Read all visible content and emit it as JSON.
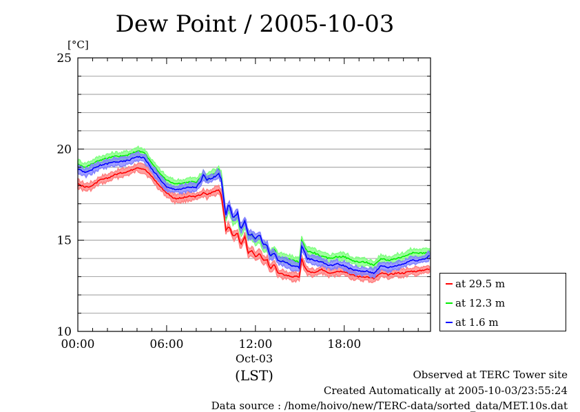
{
  "chart_data": {
    "type": "line",
    "title": "Dew Point / 2005-10-03",
    "ylabel": "[°C]",
    "xlabel": "(LST)",
    "date_label": "Oct-03",
    "ylim": [
      10,
      25
    ],
    "xlim": [
      0,
      23.83
    ],
    "yticks": [
      "10",
      "15",
      "20",
      "25"
    ],
    "xticks": [
      {
        "hour": 0,
        "label": "00:00"
      },
      {
        "hour": 6,
        "label": "06:00"
      },
      {
        "hour": 12,
        "label": "12:00"
      },
      {
        "hour": 18,
        "label": "18:00"
      }
    ],
    "grid": true,
    "legend_position": "right-bottom",
    "x_hours": [
      0,
      0.5,
      1,
      1.5,
      2,
      2.5,
      3,
      3.5,
      4,
      4.5,
      5,
      5.5,
      6,
      6.5,
      7,
      7.5,
      8,
      8.3,
      8.5,
      8.7,
      9,
      9.3,
      9.5,
      9.7,
      9.9,
      10.0,
      10.2,
      10.5,
      10.8,
      11,
      11.3,
      11.5,
      11.8,
      12,
      12.3,
      12.5,
      12.8,
      13,
      13.3,
      13.5,
      14,
      14.5,
      15,
      15.1,
      15.3,
      15.5,
      16,
      16.5,
      17,
      17.5,
      18,
      18.5,
      19,
      19.5,
      20,
      20.5,
      21,
      21.5,
      22,
      22.5,
      23,
      23.5,
      23.8
    ],
    "series": [
      {
        "name": "at 29.5 m",
        "color": "#ff0000",
        "values": [
          18.1,
          17.9,
          18.0,
          18.3,
          18.4,
          18.6,
          18.7,
          18.8,
          19.0,
          18.9,
          18.5,
          18.0,
          17.6,
          17.3,
          17.3,
          17.4,
          17.4,
          17.5,
          17.6,
          17.5,
          17.6,
          17.7,
          17.8,
          17.5,
          16.3,
          15.5,
          15.8,
          15.2,
          15.4,
          14.7,
          15.2,
          14.3,
          14.4,
          14.1,
          14.3,
          13.9,
          13.9,
          13.4,
          13.7,
          13.2,
          13.1,
          13.0,
          13.0,
          14.0,
          13.6,
          13.3,
          13.2,
          13.4,
          13.2,
          13.3,
          13.3,
          13.1,
          13.0,
          13.0,
          12.9,
          13.2,
          13.1,
          13.2,
          13.2,
          13.3,
          13.3,
          13.4,
          13.4
        ]
      },
      {
        "name": "at 12.3 m",
        "color": "#00ee00",
        "values": [
          19.2,
          19.0,
          19.2,
          19.4,
          19.5,
          19.6,
          19.6,
          19.7,
          19.9,
          19.8,
          19.2,
          18.7,
          18.3,
          18.1,
          18.1,
          18.2,
          18.2,
          18.4,
          18.6,
          18.4,
          18.6,
          18.7,
          18.9,
          18.5,
          17.2,
          16.2,
          16.8,
          16.0,
          16.3,
          15.4,
          15.9,
          15.2,
          15.2,
          14.9,
          15.1,
          14.6,
          14.6,
          14.2,
          14.5,
          14.1,
          14.0,
          13.9,
          13.8,
          15.0,
          14.7,
          14.4,
          14.3,
          14.1,
          14.0,
          14.1,
          14.1,
          13.9,
          13.8,
          13.8,
          13.6,
          14.0,
          13.9,
          14.0,
          14.1,
          14.3,
          14.3,
          14.3,
          14.4
        ]
      },
      {
        "name": "at 1.6 m",
        "color": "#0000ff",
        "values": [
          18.9,
          18.7,
          18.9,
          19.1,
          19.2,
          19.3,
          19.3,
          19.4,
          19.6,
          19.5,
          18.9,
          18.4,
          17.9,
          17.8,
          17.8,
          17.9,
          17.9,
          18.2,
          18.6,
          18.3,
          18.4,
          18.5,
          18.7,
          18.3,
          17.0,
          16.4,
          17.0,
          16.2,
          16.5,
          15.6,
          16.1,
          15.3,
          15.3,
          15.1,
          15.3,
          14.8,
          14.7,
          14.1,
          14.3,
          13.9,
          13.8,
          13.6,
          13.5,
          14.7,
          14.4,
          14.0,
          13.9,
          13.8,
          13.6,
          13.7,
          13.6,
          13.4,
          13.3,
          13.3,
          13.2,
          13.6,
          13.5,
          13.6,
          13.7,
          13.9,
          13.9,
          14.0,
          14.2
        ]
      }
    ]
  },
  "footer": {
    "line1": "Observed at TERC Tower site",
    "line2": "Created Automatically at 2005-10-03/23:55:24",
    "line3": "Data source : /home/hoivo/new/TERC-data/sorted_data/MET.10s.dat"
  }
}
